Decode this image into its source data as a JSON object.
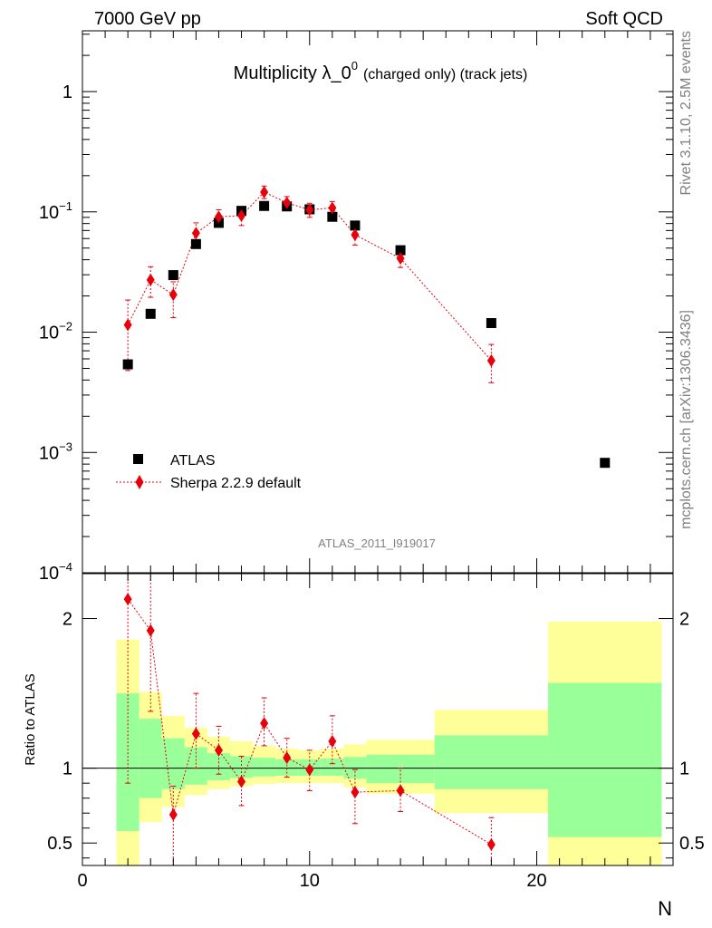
{
  "header": {
    "left": "7000 GeV pp",
    "right": "Soft QCD"
  },
  "side_labels": {
    "rivet": "Rivet 3.1.10,  2.5M events",
    "mcplots": "mcplots.cern.ch [arXiv:1306.3436]"
  },
  "watermark": "ATLAS_2011_I919017",
  "colors": {
    "data": "#000000",
    "mc": "#e8000b",
    "band_outer": "#ffff99",
    "band_inner": "#99ff99"
  },
  "chart_data": [
    {
      "type": "scatter",
      "title": "Multiplicity λ_0⁰",
      "title_main": "Multiplicity λ_0",
      "title_sup": "0",
      "title_suffix": "(charged only) (track jets)",
      "yscale": "log",
      "xlim": [
        0,
        26
      ],
      "ylim": [
        0.0001,
        3.2
      ],
      "ytick_labels": [
        {
          "value": 1,
          "base": "1",
          "exp": ""
        },
        {
          "value": 0.1,
          "base": "10",
          "exp": "−1"
        },
        {
          "value": 0.01,
          "base": "10",
          "exp": "−2"
        },
        {
          "value": 0.001,
          "base": "10",
          "exp": "−3"
        },
        {
          "value": 0.0001,
          "base": "10",
          "exp": "−4"
        }
      ],
      "legend": {
        "position": "lower-left",
        "entries": [
          "ATLAS",
          "Sherpa 2.2.9 default"
        ]
      },
      "series": [
        {
          "name": "ATLAS",
          "marker": "square",
          "points": [
            {
              "x": 2,
              "y": 0.0054
            },
            {
              "x": 3,
              "y": 0.0142
            },
            {
              "x": 4,
              "y": 0.0298
            },
            {
              "x": 5,
              "y": 0.054
            },
            {
              "x": 6,
              "y": 0.081
            },
            {
              "x": 7,
              "y": 0.102
            },
            {
              "x": 8,
              "y": 0.112
            },
            {
              "x": 9,
              "y": 0.111
            },
            {
              "x": 10,
              "y": 0.105
            },
            {
              "x": 11,
              "y": 0.091
            },
            {
              "x": 12,
              "y": 0.077
            },
            {
              "x": 14,
              "y": 0.048
            },
            {
              "x": 18,
              "y": 0.0119
            },
            {
              "x": 23,
              "y": 0.00082
            }
          ]
        },
        {
          "name": "Sherpa 2.2.9 default",
          "marker": "diamond",
          "line": "dotted",
          "points": [
            {
              "x": 2,
              "y": 0.0115,
              "ylo": 0.0048,
              "yhi": 0.0185
            },
            {
              "x": 3,
              "y": 0.0272,
              "ylo": 0.0195,
              "yhi": 0.035
            },
            {
              "x": 4,
              "y": 0.0205,
              "ylo": 0.0132,
              "yhi": 0.0262
            },
            {
              "x": 5,
              "y": 0.0665,
              "ylo": 0.054,
              "yhi": 0.081
            },
            {
              "x": 6,
              "y": 0.091,
              "ylo": 0.078,
              "yhi": 0.104
            },
            {
              "x": 7,
              "y": 0.093,
              "ylo": 0.077,
              "yhi": 0.11
            },
            {
              "x": 8,
              "y": 0.146,
              "ylo": 0.129,
              "yhi": 0.164
            },
            {
              "x": 9,
              "y": 0.119,
              "ylo": 0.104,
              "yhi": 0.134
            },
            {
              "x": 10,
              "y": 0.104,
              "ylo": 0.09,
              "yhi": 0.118
            },
            {
              "x": 11,
              "y": 0.108,
              "ylo": 0.093,
              "yhi": 0.122
            },
            {
              "x": 12,
              "y": 0.0645,
              "ylo": 0.053,
              "yhi": 0.076
            },
            {
              "x": 14,
              "y": 0.041,
              "ylo": 0.0345,
              "yhi": 0.048
            },
            {
              "x": 18,
              "y": 0.0058,
              "ylo": 0.0038,
              "yhi": 0.0079
            }
          ]
        }
      ]
    },
    {
      "type": "scatter",
      "ylabel": "Ratio to ATLAS",
      "xlabel": "N",
      "xlim": [
        0,
        26
      ],
      "ylim": [
        0.35,
        2.3
      ],
      "xtick_labels": [
        "0",
        "10",
        "20"
      ],
      "xticks": [
        0,
        10,
        20
      ],
      "ytick_labels": [
        "0.5",
        "1",
        "2"
      ],
      "yticks": [
        0.5,
        1,
        2
      ],
      "reference_line": 1,
      "bands": [
        {
          "x0": 1.5,
          "x1": 2.5,
          "outer": [
            0.3,
            1.86
          ],
          "inner": [
            0.58,
            1.5
          ]
        },
        {
          "x0": 2.5,
          "x1": 3.5,
          "outer": [
            0.64,
            1.51
          ],
          "inner": [
            0.8,
            1.33
          ]
        },
        {
          "x0": 3.5,
          "x1": 4.5,
          "outer": [
            0.74,
            1.35
          ],
          "inner": [
            0.86,
            1.2
          ]
        },
        {
          "x0": 4.5,
          "x1": 5.5,
          "outer": [
            0.82,
            1.27
          ],
          "inner": [
            0.89,
            1.14
          ]
        },
        {
          "x0": 5.5,
          "x1": 6.5,
          "outer": [
            0.86,
            1.21
          ],
          "inner": [
            0.92,
            1.1
          ]
        },
        {
          "x0": 6.5,
          "x1": 7.5,
          "outer": [
            0.88,
            1.18
          ],
          "inner": [
            0.935,
            1.08
          ]
        },
        {
          "x0": 7.5,
          "x1": 8.5,
          "outer": [
            0.895,
            1.15
          ],
          "inner": [
            0.945,
            1.07
          ]
        },
        {
          "x0": 8.5,
          "x1": 9.5,
          "outer": [
            0.9,
            1.13
          ],
          "inner": [
            0.95,
            1.06
          ]
        },
        {
          "x0": 9.5,
          "x1": 10.5,
          "outer": [
            0.9,
            1.12
          ],
          "inner": [
            0.95,
            1.06
          ]
        },
        {
          "x0": 10.5,
          "x1": 11.5,
          "outer": [
            0.9,
            1.13
          ],
          "inner": [
            0.95,
            1.065
          ]
        },
        {
          "x0": 11.5,
          "x1": 12.5,
          "outer": [
            0.87,
            1.16
          ],
          "inner": [
            0.93,
            1.075
          ]
        },
        {
          "x0": 12.5,
          "x1": 15.5,
          "outer": [
            0.83,
            1.19
          ],
          "inner": [
            0.9,
            1.09
          ]
        },
        {
          "x0": 15.5,
          "x1": 20.5,
          "outer": [
            0.7,
            1.39
          ],
          "inner": [
            0.86,
            1.22
          ]
        },
        {
          "x0": 20.5,
          "x1": 25.5,
          "outer": [
            0.3,
            1.98
          ],
          "inner": [
            0.54,
            1.57
          ]
        }
      ],
      "series": [
        {
          "name": "Sherpa 2.2.9 default",
          "points": [
            {
              "x": 2,
              "y": 2.13,
              "ylo": 0.9,
              "yhi": 2.3
            },
            {
              "x": 3,
              "y": 1.92,
              "ylo": 1.38,
              "yhi": 2.3
            },
            {
              "x": 4,
              "y": 0.69,
              "ylo": 0.35,
              "yhi": 0.88
            },
            {
              "x": 5,
              "y": 1.23,
              "ylo": 1.0,
              "yhi": 1.5
            },
            {
              "x": 6,
              "y": 1.12,
              "ylo": 0.96,
              "yhi": 1.28
            },
            {
              "x": 7,
              "y": 0.91,
              "ylo": 0.75,
              "yhi": 1.08
            },
            {
              "x": 8,
              "y": 1.3,
              "ylo": 1.15,
              "yhi": 1.47
            },
            {
              "x": 9,
              "y": 1.07,
              "ylo": 0.94,
              "yhi": 1.2
            },
            {
              "x": 10,
              "y": 0.99,
              "ylo": 0.85,
              "yhi": 1.12
            },
            {
              "x": 11,
              "y": 1.18,
              "ylo": 1.03,
              "yhi": 1.35
            },
            {
              "x": 12,
              "y": 0.84,
              "ylo": 0.63,
              "yhi": 0.99
            },
            {
              "x": 14,
              "y": 0.85,
              "ylo": 0.71,
              "yhi": 1.0
            },
            {
              "x": 18,
              "y": 0.49,
              "ylo": 0.35,
              "yhi": 0.67
            }
          ]
        }
      ]
    }
  ]
}
